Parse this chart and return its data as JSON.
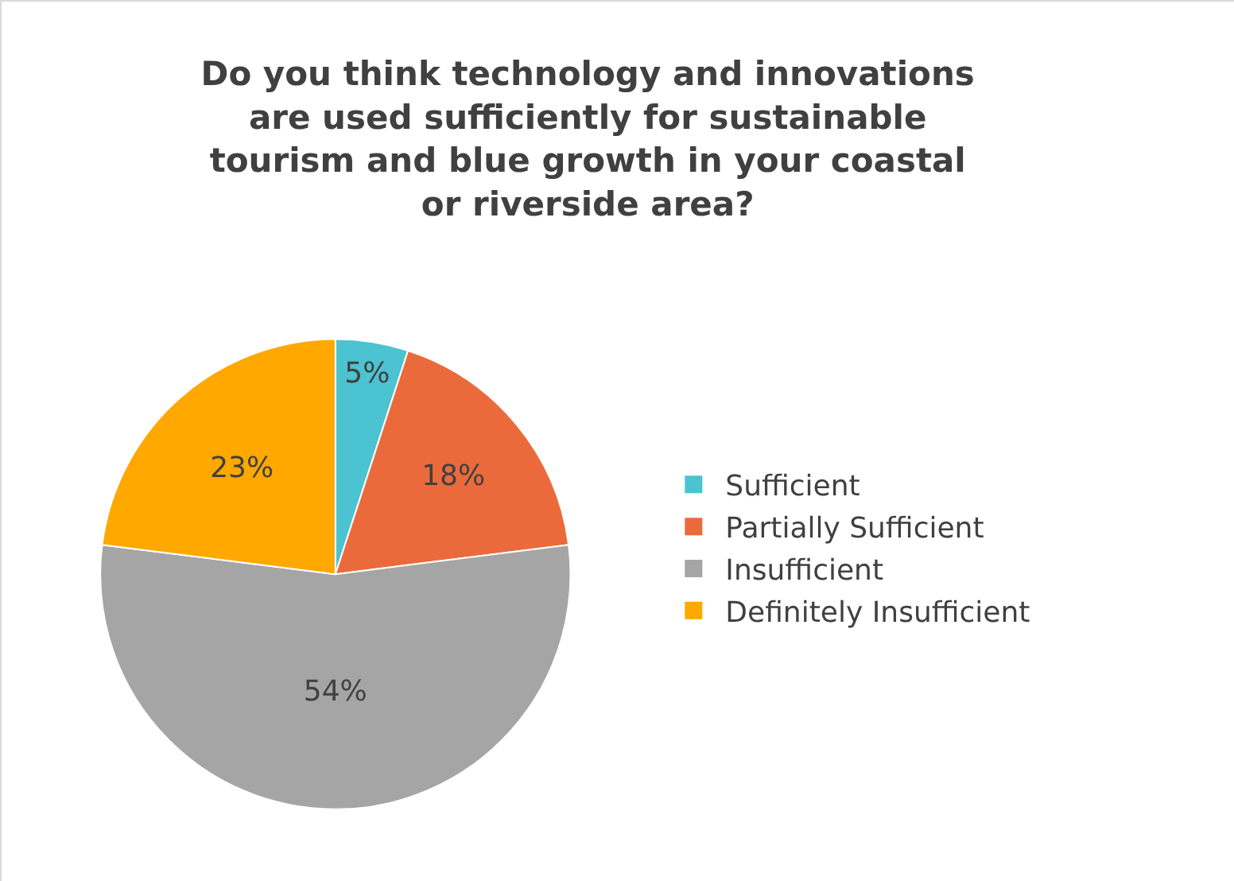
{
  "chart_data": {
    "type": "pie",
    "title": "Do you think technology and innovations are used sufficiently for sustainable tourism and blue growth in your coastal or riverside area?",
    "categories": [
      "Sufficient",
      "Partially Sufficient",
      "Insufficient",
      "Definitely Insufficient"
    ],
    "values": [
      5,
      18,
      54,
      23
    ],
    "value_labels": [
      "5%",
      "18%",
      "54%",
      "23%"
    ],
    "colors": [
      "#4bc3d0",
      "#eb6a3c",
      "#a5a5a5",
      "#ffa800"
    ],
    "legend": "right"
  }
}
